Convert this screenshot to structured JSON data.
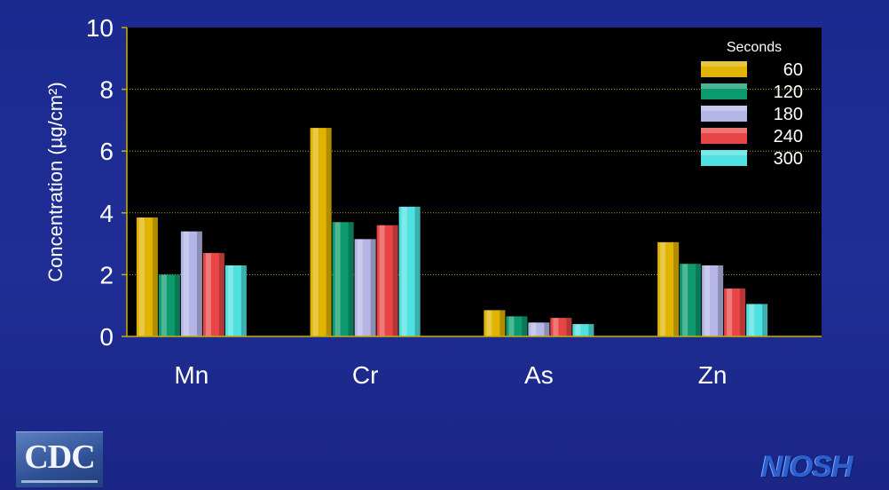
{
  "chart_data": {
    "type": "bar",
    "categories": [
      "Mn",
      "Cr",
      "As",
      "Zn"
    ],
    "series": [
      {
        "name": "60",
        "values": [
          3.85,
          6.75,
          0.85,
          3.05
        ],
        "color": "#e0b400"
      },
      {
        "name": "120",
        "values": [
          2.0,
          3.7,
          0.65,
          2.35
        ],
        "color": "#0c9a6e"
      },
      {
        "name": "180",
        "values": [
          3.4,
          3.15,
          0.45,
          2.3
        ],
        "color": "#b4b6e6"
      },
      {
        "name": "240",
        "values": [
          2.7,
          3.6,
          0.6,
          1.55
        ],
        "color": "#e84646"
      },
      {
        "name": "300",
        "values": [
          2.3,
          4.2,
          0.4,
          1.05
        ],
        "color": "#4fe0e0"
      }
    ],
    "title": "",
    "xlabel": "",
    "ylabel": "Concentration (µg/cm²)",
    "ylim": [
      0,
      10
    ],
    "yticks": [
      "0",
      "2",
      "4",
      "6",
      "8",
      "10"
    ],
    "legend_title": "Seconds",
    "legend_position": "top-right",
    "grid": true,
    "plot_background": "#000000",
    "gridline_color": "#b8a400"
  },
  "logos": {
    "left": "CDC",
    "right": "NIOSH"
  }
}
